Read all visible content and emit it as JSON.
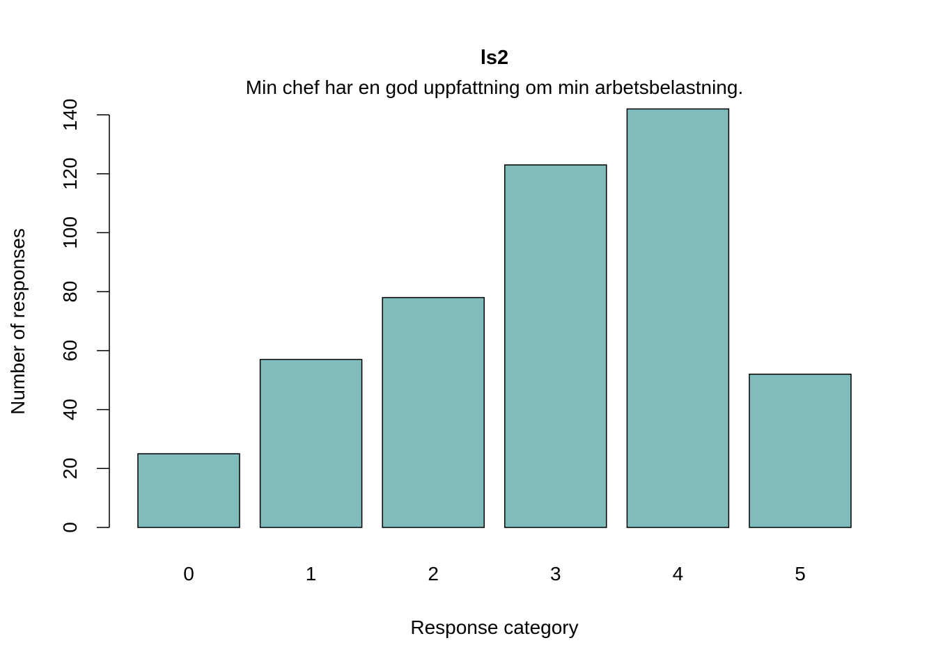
{
  "chart_data": {
    "type": "bar",
    "title": "ls2",
    "subtitle": "Min chef har en god uppfattning om min arbetsbelastning.",
    "xlabel": "Response category",
    "ylabel": "Number of responses",
    "categories": [
      "0",
      "1",
      "2",
      "3",
      "4",
      "5"
    ],
    "values": [
      25,
      57,
      78,
      123,
      142,
      52
    ],
    "ylim": [
      0,
      140
    ],
    "yticks": [
      "0",
      "20",
      "40",
      "60",
      "80",
      "100",
      "120",
      "140"
    ],
    "grid": false,
    "legend": "none",
    "bar_color": "#80BCBC",
    "bar_stroke": "#000000"
  }
}
